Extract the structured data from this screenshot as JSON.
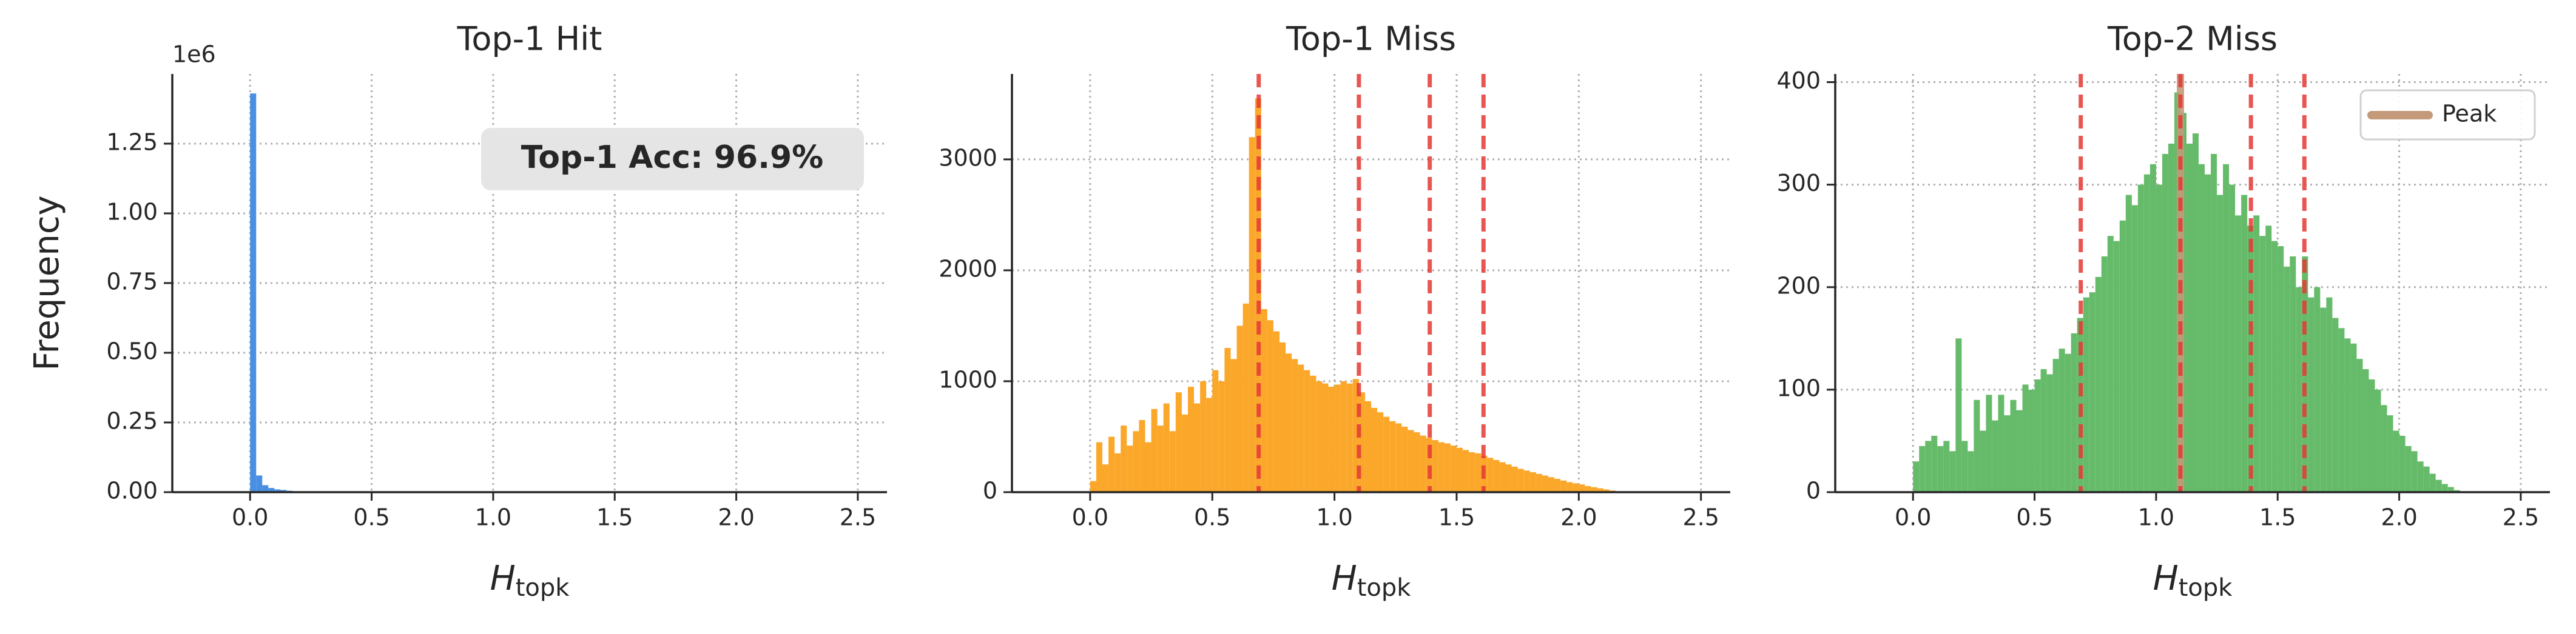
{
  "chart_data": [
    {
      "type": "histogram",
      "title": "Top-1 Hit",
      "ylabel": "Frequency",
      "y_offset_label": "1e6",
      "xlabel": {
        "main": "H",
        "sub": "topk"
      },
      "annotation": "Top-1 Acc: 96.9%",
      "color": "#4a90e2",
      "bins": [
        0,
        0.025,
        0.05,
        0.075,
        0.1,
        0.125,
        0.15,
        0.175,
        0.2
      ],
      "values": [
        1.43,
        0.06,
        0.025,
        0.015,
        0.01,
        0.008,
        0.005,
        0.003
      ],
      "xlim": [
        -0.32,
        2.62
      ],
      "ylim": [
        0,
        1.5
      ],
      "xticks": [
        {
          "value": 0,
          "label": "0.0"
        },
        0.5,
        {
          "value": 1,
          "label": "1.0"
        },
        1.5,
        {
          "value": 2,
          "label": "2.0"
        },
        2.5
      ],
      "yticks": [
        {
          "value": 0,
          "label": "0.00"
        },
        0.25,
        {
          "value": 0.5,
          "label": "0.50"
        },
        0.75,
        {
          "value": 1,
          "label": "1.00"
        },
        1.25
      ],
      "grid": true
    },
    {
      "type": "histogram",
      "title": "Top-1 Miss",
      "xlabel": {
        "main": "H",
        "sub": "topk"
      },
      "color": "#fba72a",
      "bins": [
        0,
        0.025,
        0.05,
        0.075,
        0.1,
        0.125,
        0.15,
        0.175,
        0.2,
        0.225,
        0.25,
        0.275,
        0.3,
        0.325,
        0.35,
        0.375,
        0.4,
        0.425,
        0.45,
        0.475,
        0.5,
        0.525,
        0.55,
        0.575,
        0.6,
        0.625,
        0.65,
        0.675,
        0.7,
        0.725,
        0.75,
        0.775,
        0.8,
        0.825,
        0.85,
        0.875,
        0.9,
        0.925,
        0.95,
        0.975,
        1,
        1.025,
        1.05,
        1.075,
        1.1,
        1.125,
        1.15,
        1.175,
        1.2,
        1.225,
        1.25,
        1.275,
        1.3,
        1.325,
        1.35,
        1.375,
        1.4,
        1.425,
        1.45,
        1.475,
        1.5,
        1.525,
        1.55,
        1.575,
        1.6,
        1.625,
        1.65,
        1.675,
        1.7,
        1.725,
        1.75,
        1.775,
        1.8,
        1.825,
        1.85,
        1.875,
        1.9,
        1.925,
        1.95,
        1.975,
        2,
        2.025,
        2.05,
        2.075,
        2.1,
        2.125,
        2.15,
        2.175,
        2.2
      ],
      "values": [
        100,
        450,
        250,
        500,
        350,
        600,
        420,
        550,
        650,
        450,
        750,
        600,
        800,
        550,
        900,
        700,
        950,
        800,
        1000,
        850,
        1100,
        1000,
        1300,
        1200,
        1500,
        1700,
        3200,
        3550,
        1650,
        1550,
        1450,
        1350,
        1250,
        1200,
        1150,
        1100,
        1050,
        1000,
        980,
        950,
        970,
        1000,
        980,
        1020,
        900,
        820,
        760,
        720,
        680,
        640,
        620,
        590,
        560,
        540,
        510,
        490,
        470,
        450,
        440,
        420,
        400,
        380,
        360,
        350,
        330,
        310,
        290,
        270,
        250,
        230,
        210,
        195,
        180,
        165,
        150,
        135,
        120,
        105,
        90,
        80,
        70,
        55,
        45,
        35,
        25,
        15,
        8,
        3
      ],
      "vlines": {
        "values": [
          0.69,
          1.1,
          1.39,
          1.61
        ],
        "color": "#e53935"
      },
      "xlim": [
        -0.32,
        2.62
      ],
      "ylim": [
        0,
        3770
      ],
      "xticks": [
        {
          "value": 0,
          "label": "0.0"
        },
        0.5,
        {
          "value": 1,
          "label": "1.0"
        },
        1.5,
        {
          "value": 2,
          "label": "2.0"
        },
        2.5
      ],
      "yticks": [
        0,
        1000,
        2000,
        3000
      ],
      "grid": true
    },
    {
      "type": "histogram",
      "title": "Top-2 Miss",
      "xlabel": {
        "main": "H",
        "sub": "topk"
      },
      "color": "#66bb6a",
      "bins": [
        0,
        0.025,
        0.05,
        0.075,
        0.1,
        0.125,
        0.15,
        0.175,
        0.2,
        0.225,
        0.25,
        0.275,
        0.3,
        0.325,
        0.35,
        0.375,
        0.4,
        0.425,
        0.45,
        0.475,
        0.5,
        0.525,
        0.55,
        0.575,
        0.6,
        0.625,
        0.65,
        0.675,
        0.7,
        0.725,
        0.75,
        0.775,
        0.8,
        0.825,
        0.85,
        0.875,
        0.9,
        0.925,
        0.95,
        0.975,
        1,
        1.025,
        1.05,
        1.075,
        1.1,
        1.125,
        1.15,
        1.175,
        1.2,
        1.225,
        1.25,
        1.275,
        1.3,
        1.325,
        1.35,
        1.375,
        1.4,
        1.425,
        1.45,
        1.475,
        1.5,
        1.525,
        1.55,
        1.575,
        1.6,
        1.625,
        1.65,
        1.675,
        1.7,
        1.725,
        1.75,
        1.775,
        1.8,
        1.825,
        1.85,
        1.875,
        1.9,
        1.925,
        1.95,
        1.975,
        2,
        2.025,
        2.05,
        2.075,
        2.1,
        2.125,
        2.15,
        2.175,
        2.2,
        2.225,
        2.25
      ],
      "values": [
        30,
        45,
        50,
        55,
        45,
        50,
        40,
        150,
        50,
        40,
        90,
        60,
        95,
        70,
        95,
        75,
        90,
        80,
        105,
        100,
        110,
        120,
        115,
        130,
        140,
        135,
        155,
        170,
        190,
        195,
        210,
        230,
        250,
        245,
        265,
        290,
        280,
        300,
        310,
        320,
        300,
        330,
        340,
        390,
        370,
        340,
        350,
        320,
        310,
        330,
        290,
        320,
        300,
        270,
        290,
        260,
        270,
        250,
        260,
        245,
        240,
        220,
        230,
        200,
        230,
        190,
        200,
        180,
        190,
        170,
        160,
        150,
        145,
        130,
        120,
        110,
        100,
        85,
        75,
        60,
        55,
        45,
        40,
        30,
        25,
        18,
        12,
        8,
        5,
        2
      ],
      "vlines": {
        "values": [
          0.69,
          1.1,
          1.39,
          1.61
        ],
        "color": "#e53935"
      },
      "peak": {
        "name": "Peak",
        "x": 1.1,
        "color": "#c49a7a"
      },
      "legend": "upper right",
      "xlim": [
        -0.32,
        2.62
      ],
      "ylim": [
        0,
        408
      ],
      "xticks": [
        {
          "value": 0,
          "label": "0.0"
        },
        0.5,
        {
          "value": 1,
          "label": "1.0"
        },
        1.5,
        {
          "value": 2,
          "label": "2.0"
        },
        2.5
      ],
      "yticks": [
        0,
        100,
        200,
        300,
        400
      ],
      "grid": true
    }
  ]
}
